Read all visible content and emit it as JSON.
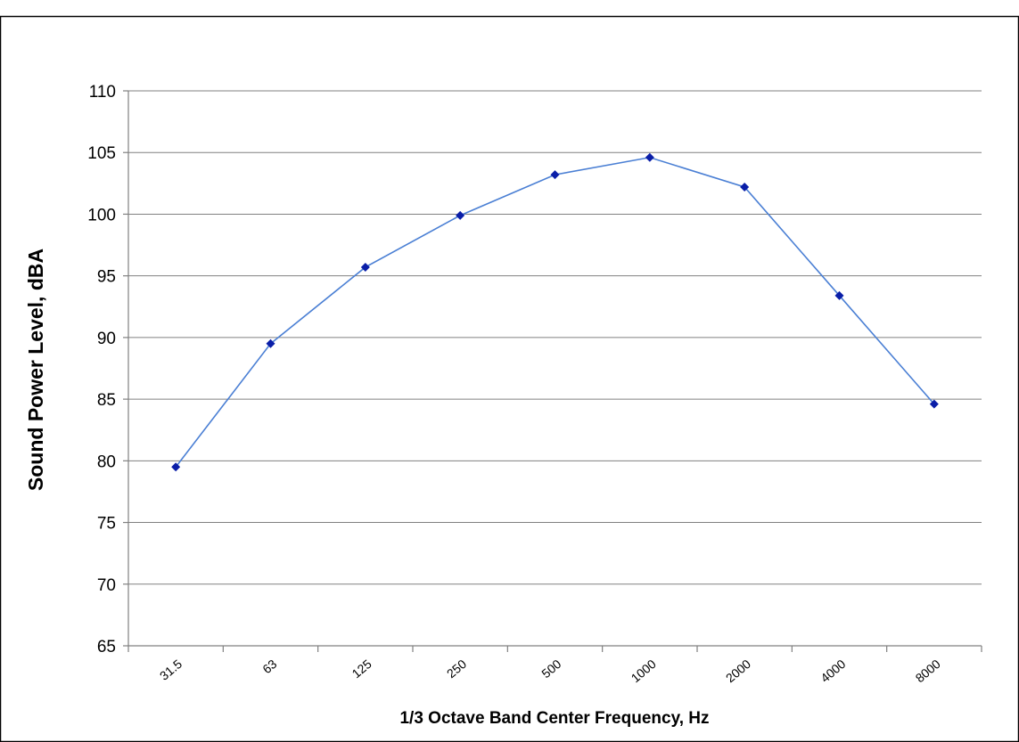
{
  "chart_data": {
    "type": "line",
    "title": "",
    "xlabel": "1/3 Octave Band Center Frequency, Hz",
    "ylabel": "Sound Power Level, dBA",
    "categories": [
      "31.5",
      "63",
      "125",
      "250",
      "500",
      "1000",
      "2000",
      "4000",
      "8000"
    ],
    "series": [
      {
        "values": [
          79.5,
          89.5,
          95.7,
          99.9,
          103.2,
          104.6,
          102.2,
          93.4,
          84.6
        ]
      }
    ],
    "ylim": [
      65,
      110
    ],
    "yticks": [
      "65",
      "70",
      "75",
      "80",
      "85",
      "90",
      "95",
      "100",
      "105",
      "110"
    ],
    "grid": true,
    "legend": "none",
    "line_color": "#4a7fd4",
    "marker_color": "#0a1ea8"
  }
}
